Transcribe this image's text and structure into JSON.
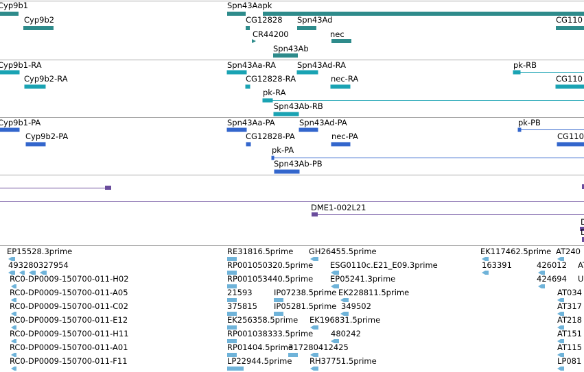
{
  "colors": {
    "gene": "#2e8b8b",
    "mrna": "#1aa3b3",
    "protein": "#3366cc",
    "clone": "#6a4c9c",
    "est": "#6fb3d9",
    "separator": "#a8a8a8"
  },
  "genes": {
    "labels": [
      "Cyp9b1",
      "Cyp9b2",
      "Spn43Aapk",
      "CG12828",
      "Spn43Ad",
      "CR44200",
      "nec",
      "Spn43Ab",
      "CG110"
    ]
  },
  "mrnas": {
    "labels": [
      "Cyp9b1-RA",
      "Cyp9b2-RA",
      "Spn43Aa-RA",
      "Spn43Ad-RA",
      "CG12828-RA",
      "nec-RA",
      "pk-RA",
      "Spn43Ab-RB",
      "pk-RB",
      "CG110"
    ]
  },
  "proteins": {
    "labels": [
      "Cyp9b1-PA",
      "Cyp9b2-PA",
      "Spn43Aa-PA",
      "Spn43Ad-PA",
      "CG12828-PA",
      "nec-PA",
      "pk-PA",
      "Spn43Ab-PB",
      "pk-PB",
      "CG110"
    ]
  },
  "clones": {
    "labels": [
      "DME1-002L21",
      "D",
      "D"
    ]
  },
  "ests": {
    "labels": [
      "EP15528.3prime",
      "493280327954",
      "RC0-DP0009-150700-011-H02",
      "RC0-DP0009-150700-011-A05",
      "RC0-DP0009-150700-011-C02",
      "RC0-DP0009-150700-011-E12",
      "RC0-DP0009-150700-011-H11",
      "RC0-DP0009-150700-011-A01",
      "RC0-DP0009-150700-011-F11",
      "RE31816.5prime",
      "RP001050320.5prime",
      "RP001053440.5prime",
      "21593",
      "375815",
      "EK256358.5prime",
      "RP001038333.5prime",
      "RP01404.5prime",
      "LP22944.5prime",
      "GH26455.5prime",
      "ESG0110c.E21_E09.3prime",
      "EP05241.3prime",
      "IP07238.5prime",
      "EK228811.5prime",
      "IP05281.5prime",
      "349502",
      "EK196831.5prime",
      "480242",
      "317280412425",
      "RH37751.5prime",
      "EK117462.5prime",
      "163391",
      "AT240",
      "426012",
      "424694",
      "AT",
      "U",
      "AT034",
      "AT317",
      "AT218",
      "AT151",
      "AT115",
      "LP081"
    ]
  }
}
